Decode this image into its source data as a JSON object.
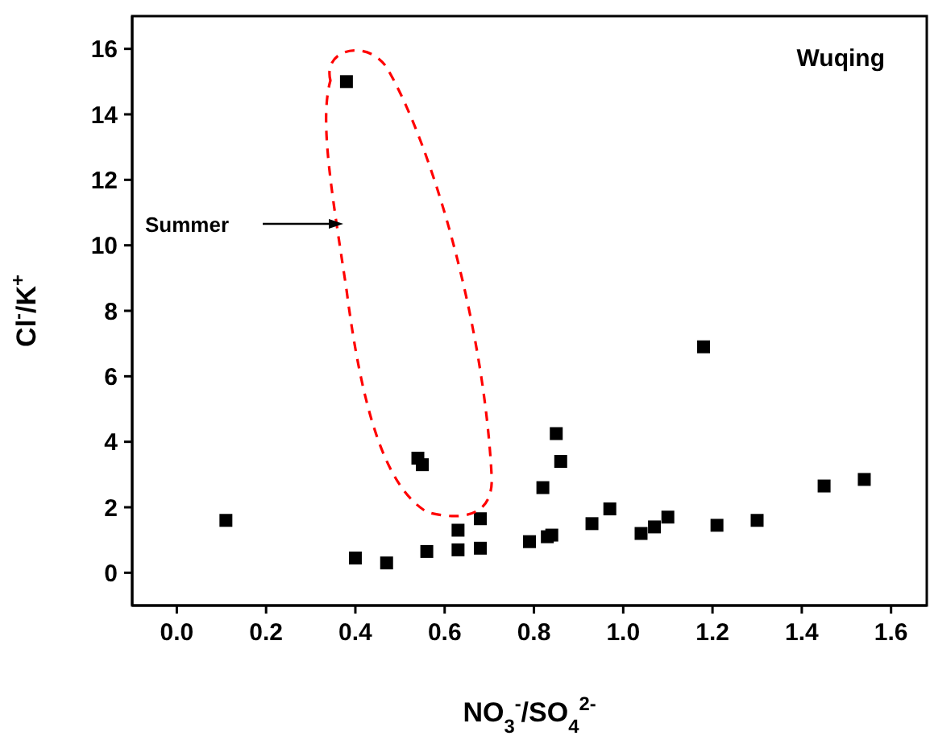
{
  "chart_data": {
    "type": "scatter",
    "xlabel": "NO$_{3}$$^{-}$/SO$_{4}$$^{2-}$",
    "ylabel": "Cl$^{-}$/K$^{+}$",
    "annotations": [
      "Wuqing",
      "Summer"
    ],
    "x": [
      0.11,
      0.38,
      0.4,
      0.47,
      0.54,
      0.55,
      0.56,
      0.63,
      0.63,
      0.68,
      0.68,
      0.79,
      0.82,
      0.83,
      0.84,
      0.85,
      0.86,
      0.93,
      0.97,
      1.04,
      1.07,
      1.1,
      1.18,
      1.21,
      1.3,
      1.45,
      1.54
    ],
    "series": [
      {
        "color": "#000000",
        "values": [
          1.6,
          15,
          0.45,
          0.3,
          3.5,
          3.3,
          0.65,
          1.3,
          0.7,
          1.65,
          0.75,
          0.95,
          2.6,
          1.1,
          1.15,
          4.25,
          3.4,
          1.5,
          1.95,
          1.2,
          1.4,
          1.7,
          6.9,
          1.45,
          1.6,
          2.65,
          2.85
        ]
      }
    ],
    "xlim": [
      -0.1,
      1.68
    ],
    "ylim": [
      -1,
      17
    ],
    "xticks": [
      {
        "value": 0,
        "label": "0.0"
      },
      {
        "value": 0.2,
        "label": "0.2"
      },
      {
        "value": 0.4,
        "label": "0.4"
      },
      {
        "value": 0.6,
        "label": "0.6"
      },
      {
        "value": 0.8,
        "label": "0.8"
      },
      {
        "value": 1,
        "label": "1.0"
      },
      {
        "value": 1.2,
        "label": "1.2"
      },
      {
        "value": 1.4,
        "label": "1.4"
      },
      {
        "value": 1.6,
        "label": "1.6"
      }
    ],
    "yticks": [
      0,
      2,
      4,
      6,
      8,
      10,
      12,
      14,
      16
    ],
    "marker": "square"
  }
}
